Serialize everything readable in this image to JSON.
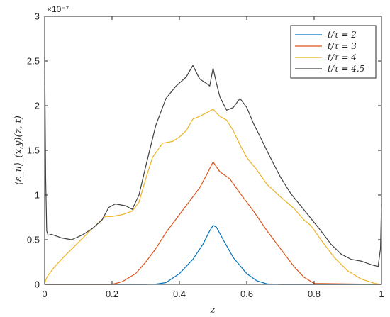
{
  "chart_data": {
    "type": "line",
    "xlabel": "z",
    "ylabel": "⟨ε_u⟩_(x,y)(z, t)",
    "xlim": [
      0,
      1
    ],
    "ylim": [
      0,
      3e-07
    ],
    "y_exponent_label": "×10⁻⁷",
    "xticks": [
      0,
      0.2,
      0.4,
      0.6,
      0.8,
      1
    ],
    "xtick_labels": [
      "0",
      "0.2",
      "0.4",
      "0.6",
      "0.8",
      "1"
    ],
    "yticks": [
      0,
      5e-08,
      1e-07,
      1.5e-07,
      2e-07,
      2.5e-07,
      3e-07
    ],
    "ytick_labels": [
      "0",
      "0.5",
      "1",
      "1.5",
      "2",
      "2.5",
      "3"
    ],
    "grid": false,
    "legend_position": "top-right",
    "series": [
      {
        "name": "t/τ = 2",
        "color": "#0072BD",
        "x": [
          0,
          0.3,
          0.33,
          0.36,
          0.4,
          0.44,
          0.47,
          0.49,
          0.5,
          0.51,
          0.53,
          0.56,
          0.6,
          0.63,
          0.66,
          0.7,
          1
        ],
        "y": [
          0,
          0,
          3e-10,
          2e-09,
          1.2e-08,
          2.8e-08,
          4.5e-08,
          6e-08,
          6.6e-08,
          6.4e-08,
          5e-08,
          3e-08,
          1.2e-08,
          4e-09,
          5e-10,
          0,
          0
        ]
      },
      {
        "name": "t/τ = 3",
        "color": "#D95319",
        "x": [
          0,
          0.2,
          0.23,
          0.27,
          0.3,
          0.33,
          0.36,
          0.4,
          0.43,
          0.46,
          0.48,
          0.5,
          0.52,
          0.55,
          0.58,
          0.62,
          0.66,
          0.7,
          0.74,
          0.77,
          0.8,
          1
        ],
        "y": [
          0,
          0,
          3e-09,
          1.2e-08,
          2.5e-08,
          4e-08,
          5.8e-08,
          7.8e-08,
          9.3e-08,
          1.08e-07,
          1.22e-07,
          1.37e-07,
          1.26e-07,
          1.18e-07,
          1.02e-07,
          8.2e-08,
          6e-08,
          4e-08,
          2e-08,
          8e-09,
          1e-09,
          0
        ]
      },
      {
        "name": "t/τ = 4",
        "color": "#EDB120",
        "x": [
          0,
          0.003,
          0.01,
          0.03,
          0.06,
          0.1,
          0.14,
          0.18,
          0.2,
          0.23,
          0.26,
          0.28,
          0.3,
          0.32,
          0.35,
          0.38,
          0.4,
          0.42,
          0.44,
          0.46,
          0.48,
          0.5,
          0.52,
          0.54,
          0.56,
          0.58,
          0.6,
          0.63,
          0.66,
          0.7,
          0.74,
          0.77,
          0.79,
          0.82,
          0.86,
          0.9,
          0.94,
          0.98,
          1
        ],
        "y": [
          0,
          5e-09,
          1e-08,
          2e-08,
          3.2e-08,
          4.7e-08,
          6.2e-08,
          7.6e-08,
          7.6e-08,
          7.8e-08,
          8.2e-08,
          9.2e-08,
          1.18e-07,
          1.42e-07,
          1.58e-07,
          1.6e-07,
          1.65e-07,
          1.72e-07,
          1.85e-07,
          1.88e-07,
          1.92e-07,
          1.96e-07,
          1.88e-07,
          1.84e-07,
          1.72e-07,
          1.56e-07,
          1.42e-07,
          1.28e-07,
          1.12e-07,
          9.8e-08,
          8.5e-08,
          7.2e-08,
          6.6e-08,
          5e-08,
          3e-08,
          1.5e-08,
          6e-09,
          1e-09,
          0
        ]
      },
      {
        "name": "t/τ = 4.5",
        "color": "#404040",
        "x": [
          0,
          0.003,
          0.006,
          0.01,
          0.02,
          0.05,
          0.08,
          0.11,
          0.14,
          0.17,
          0.19,
          0.21,
          0.24,
          0.26,
          0.28,
          0.3,
          0.33,
          0.36,
          0.39,
          0.42,
          0.44,
          0.46,
          0.48,
          0.49,
          0.5,
          0.51,
          0.52,
          0.54,
          0.56,
          0.58,
          0.6,
          0.62,
          0.64,
          0.67,
          0.7,
          0.73,
          0.76,
          0.79,
          0.82,
          0.85,
          0.88,
          0.91,
          0.94,
          0.97,
          0.99,
          0.997,
          1
        ],
        "y": [
          2.55e-07,
          1.2e-07,
          6e-08,
          5.5e-08,
          5.6e-08,
          5.2e-08,
          5e-08,
          5.5e-08,
          6.2e-08,
          7.2e-08,
          8.6e-08,
          9e-08,
          8.8e-08,
          8.4e-08,
          1e-07,
          1.32e-07,
          1.78e-07,
          2.08e-07,
          2.22e-07,
          2.32e-07,
          2.45e-07,
          2.3e-07,
          2.25e-07,
          2.22e-07,
          2.42e-07,
          2.25e-07,
          2.1e-07,
          1.95e-07,
          1.98e-07,
          2.08e-07,
          1.98e-07,
          1.8e-07,
          1.65e-07,
          1.42e-07,
          1.2e-07,
          1.02e-07,
          8.8e-08,
          7.4e-08,
          6e-08,
          4.5e-08,
          3.4e-08,
          2.8e-08,
          2.6e-08,
          2.2e-08,
          2e-08,
          4e-08,
          9e-08
        ]
      }
    ]
  }
}
